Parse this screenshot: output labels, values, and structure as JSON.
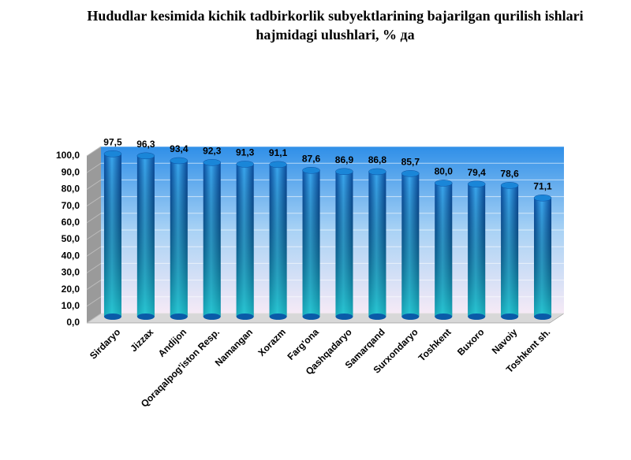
{
  "chart_data": {
    "type": "bar",
    "title": "Hududlar kesimida kichik tadbirkorlik subyektlarining bajarilgan qurilish ishlari hajmidagi ulushlari, % да",
    "categories": [
      "Sirdaryo",
      "Jizzax",
      "Andijon",
      "Qoraqalpog'iston Resp.",
      "Namangan",
      "Xorazm",
      "Farg'ona",
      "Qashqadaryo",
      "Samarqand",
      "Surxondaryo",
      "Toshkent",
      "Buxoro",
      "Navoiy",
      "Toshkent sh."
    ],
    "values": [
      97.5,
      96.3,
      93.4,
      92.3,
      91.3,
      91.1,
      87.6,
      86.9,
      86.8,
      85.7,
      80.0,
      79.4,
      78.6,
      71.1
    ],
    "value_labels": [
      "97,5",
      "96,3",
      "93,4",
      "92,3",
      "91,3",
      "91,1",
      "87,6",
      "86,9",
      "86,8",
      "85,7",
      "80,0",
      "79,4",
      "78,6",
      "71,1"
    ],
    "color": "#1a86d8",
    "ylim": [
      0,
      100
    ],
    "yticks": [
      {
        "value": 0,
        "label": "0,0"
      },
      {
        "value": 10,
        "label": "10,0"
      },
      {
        "value": 20,
        "label": "20,0"
      },
      {
        "value": 30,
        "label": "30,0"
      },
      {
        "value": 40,
        "label": "40,0"
      },
      {
        "value": 50,
        "label": "50,0"
      },
      {
        "value": 60,
        "label": "60,0"
      },
      {
        "value": 70,
        "label": "70,0"
      },
      {
        "value": 80,
        "label": "80,0"
      },
      {
        "value": 90,
        "label": "90,0"
      },
      {
        "value": 100,
        "label": "100,0"
      }
    ],
    "grid": true
  }
}
